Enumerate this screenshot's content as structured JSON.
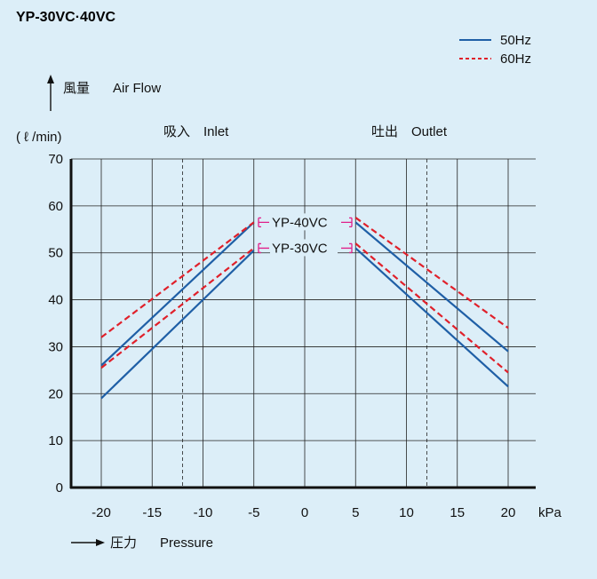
{
  "chart_data": {
    "type": "line",
    "title": "YP-30VC·40VC",
    "ylabel_jp": "風量",
    "ylabel": "Air Flow",
    "yunit": "( ℓ /min)",
    "xlabel_jp": "圧力",
    "xlabel": "Pressure",
    "xunit": "kPa",
    "inlet_label": "吸入　Inlet",
    "outlet_label": "吐出　Outlet",
    "xlim": [
      -20,
      20
    ],
    "ylim": [
      0,
      70
    ],
    "xticks": [
      -20,
      -15,
      -10,
      -5,
      0,
      5,
      10,
      15,
      20
    ],
    "yticks": [
      0,
      10,
      20,
      30,
      40,
      50,
      60,
      70
    ],
    "marker_lines_x": [
      -12,
      12
    ],
    "grid": true,
    "legend_position": "top-right",
    "legend": [
      {
        "label": "50Hz",
        "color": "#1f5fa6",
        "style": "solid"
      },
      {
        "label": "60Hz",
        "color": "#e0202a",
        "style": "dashed"
      }
    ],
    "model_labels": [
      "YP-40VC",
      "YP-30VC"
    ],
    "series": [
      {
        "name": "YP-40VC 50Hz",
        "legend": "50Hz",
        "segments": [
          [
            [
              -20,
              26
            ],
            [
              -5,
              56.5
            ]
          ],
          [
            [
              5,
              56.5
            ],
            [
              20,
              29
            ]
          ]
        ]
      },
      {
        "name": "YP-30VC 50Hz",
        "legend": "50Hz",
        "segments": [
          [
            [
              -20,
              19
            ],
            [
              -5,
              50.5
            ]
          ],
          [
            [
              5,
              51
            ],
            [
              20,
              21.5
            ]
          ]
        ]
      },
      {
        "name": "YP-40VC 60Hz",
        "legend": "60Hz",
        "segments": [
          [
            [
              -20,
              32
            ],
            [
              -5,
              56.5
            ]
          ],
          [
            [
              5,
              57.5
            ],
            [
              20,
              34
            ]
          ]
        ]
      },
      {
        "name": "YP-30VC 60Hz",
        "legend": "60Hz",
        "segments": [
          [
            [
              -20,
              25.5
            ],
            [
              -5,
              51
            ]
          ],
          [
            [
              5,
              52
            ],
            [
              20,
              24.5
            ]
          ]
        ]
      }
    ]
  },
  "colors": {
    "background": "#dceef8",
    "blue": "#1f5fa6",
    "red": "#e0202a",
    "bracket": "#e0208a"
  }
}
